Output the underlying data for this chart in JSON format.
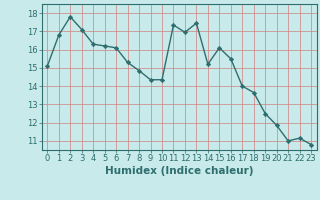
{
  "x": [
    0,
    1,
    2,
    3,
    4,
    5,
    6,
    7,
    8,
    9,
    10,
    11,
    12,
    13,
    14,
    15,
    16,
    17,
    18,
    19,
    20,
    21,
    22,
    23
  ],
  "y": [
    15.1,
    16.8,
    17.8,
    17.1,
    16.3,
    16.2,
    16.1,
    15.3,
    14.85,
    14.35,
    14.35,
    17.35,
    16.95,
    17.45,
    15.2,
    16.1,
    15.5,
    14.0,
    13.65,
    12.5,
    11.85,
    11.0,
    11.15,
    10.8
  ],
  "line_color": "#2e6e6e",
  "marker": "D",
  "marker_size": 2.2,
  "bg_color": "#c8eaea",
  "grid_color": "#d08080",
  "xlabel": "Humidex (Indice chaleur)",
  "xlim": [
    -0.5,
    23.5
  ],
  "ylim": [
    10.5,
    18.5
  ],
  "yticks": [
    11,
    12,
    13,
    14,
    15,
    16,
    17,
    18
  ],
  "xticks": [
    0,
    1,
    2,
    3,
    4,
    5,
    6,
    7,
    8,
    9,
    10,
    11,
    12,
    13,
    14,
    15,
    16,
    17,
    18,
    19,
    20,
    21,
    22,
    23
  ],
  "tick_fontsize": 6,
  "xlabel_fontsize": 7.5,
  "linewidth": 1.0
}
